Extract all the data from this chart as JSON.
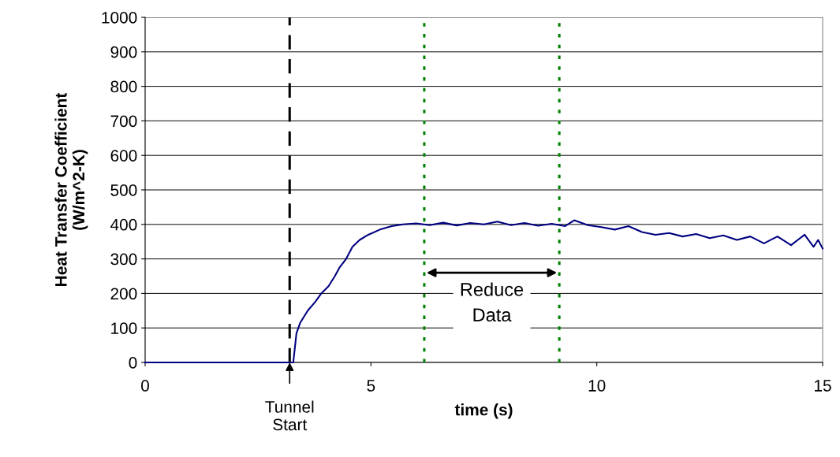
{
  "chart_data": {
    "type": "line",
    "xlabel": "time (s)",
    "ylabel": "Heat Transfer Coefficient\n(W/m^2-K)",
    "xlim": [
      0,
      15
    ],
    "xticks": [
      0,
      5,
      10,
      15
    ],
    "ylim": [
      0,
      1000
    ],
    "yticks": [
      0,
      100,
      200,
      300,
      400,
      500,
      600,
      700,
      800,
      900,
      1000
    ],
    "grid": "y",
    "series": [
      {
        "color": "#000080",
        "x": [
          0,
          0.5,
          1.0,
          1.5,
          2.0,
          2.5,
          3.0,
          3.25,
          3.28,
          3.35,
          3.43,
          3.6,
          3.77,
          3.9,
          4.06,
          4.2,
          4.3,
          4.45,
          4.59,
          4.75,
          4.94,
          5.2,
          5.46,
          5.7,
          6.0,
          6.3,
          6.6,
          6.9,
          7.2,
          7.5,
          7.8,
          8.1,
          8.4,
          8.7,
          9.0,
          9.3,
          9.5,
          9.8,
          10.1,
          10.4,
          10.7,
          11.0,
          11.3,
          11.6,
          11.9,
          12.2,
          12.5,
          12.8,
          13.1,
          13.4,
          13.7,
          14.0,
          14.3,
          14.6,
          14.8,
          14.9,
          15.0
        ],
        "values": [
          0,
          0,
          0,
          0,
          0,
          0,
          0,
          0,
          0,
          84,
          114,
          150,
          176,
          200,
          221,
          250,
          274,
          300,
          335,
          355,
          370,
          385,
          395,
          400,
          403,
          398,
          405,
          397,
          404,
          400,
          408,
          398,
          404,
          396,
          402,
          395,
          412,
          398,
          392,
          385,
          395,
          378,
          370,
          375,
          365,
          372,
          360,
          368,
          355,
          365,
          345,
          365,
          340,
          370,
          335,
          355,
          330
        ]
      }
    ],
    "ref_lines": [
      {
        "axis": "x",
        "value": 3.2,
        "label": "Tunnel\nStart",
        "color": "#000000",
        "line_style": "dashed"
      },
      {
        "axis": "x",
        "value": 6.18,
        "color": "#008000",
        "line_style": "dotted"
      },
      {
        "axis": "x",
        "value": 9.17,
        "color": "#008000",
        "line_style": "dotted"
      }
    ],
    "annotations": [
      "Reduce\nData"
    ]
  }
}
